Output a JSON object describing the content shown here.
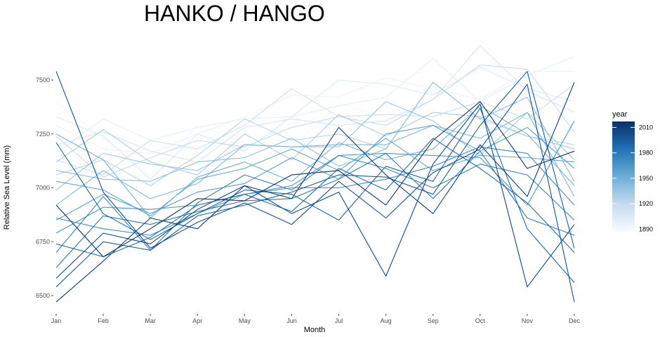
{
  "chart_data": {
    "type": "line",
    "title": "HANKO / HANGO",
    "xlabel": "Month",
    "ylabel": "Relative Sea Level (mm)",
    "categories": [
      "Jan",
      "Feb",
      "Mar",
      "Apr",
      "May",
      "Jun",
      "Jul",
      "Aug",
      "Sep",
      "Oct",
      "Nov",
      "Dec"
    ],
    "ylim": [
      6470,
      7660
    ],
    "yticks": [
      6500,
      6750,
      7000,
      7250,
      7500
    ],
    "grid": false,
    "legend": {
      "title": "year",
      "position": "right",
      "range": [
        1887,
        2017
      ],
      "ticks": [
        1890,
        1920,
        1950,
        1980,
        2010
      ],
      "colors": [
        "#f7fbff",
        "#c6dbef",
        "#6baed6",
        "#2171b5",
        "#08306b"
      ]
    },
    "series": [
      {
        "year": 1890,
        "values": [
          7400,
          7230,
          7060,
          7290,
          7210,
          7180,
          7390,
          7330,
          7260,
          7290,
          7440,
          7360
        ]
      },
      {
        "year": 1895,
        "values": [
          7290,
          7180,
          7160,
          7250,
          7330,
          7430,
          7420,
          7510,
          7460,
          7410,
          7540,
          7540
        ]
      },
      {
        "year": 1900,
        "values": [
          7160,
          7320,
          7220,
          7280,
          7320,
          7330,
          7380,
          7420,
          7600,
          7400,
          7520,
          7610
        ]
      },
      {
        "year": 1905,
        "values": [
          7330,
          7240,
          7040,
          7250,
          7170,
          7330,
          7500,
          7480,
          7430,
          7560,
          7460,
          7400
        ]
      },
      {
        "year": 1910,
        "values": [
          7200,
          7260,
          7170,
          7120,
          7280,
          7320,
          7290,
          7310,
          7410,
          7660,
          7450,
          7350
        ]
      },
      {
        "year": 1915,
        "values": [
          7130,
          7060,
          7220,
          7180,
          7290,
          7460,
          7330,
          7340,
          7330,
          7400,
          7320,
          7480
        ]
      },
      {
        "year": 1920,
        "values": [
          7240,
          7050,
          7140,
          7220,
          7190,
          7280,
          7330,
          7290,
          7410,
          7570,
          7550,
          7260
        ]
      },
      {
        "year": 1925,
        "values": [
          7060,
          7130,
          7010,
          7150,
          7320,
          7220,
          7250,
          7180,
          7490,
          7320,
          7240,
          7200
        ]
      },
      {
        "year": 1930,
        "values": [
          7120,
          7270,
          7120,
          7060,
          7250,
          7130,
          7340,
          7240,
          7350,
          7330,
          7240,
          7180
        ]
      },
      {
        "year": 1935,
        "values": [
          6990,
          7160,
          7110,
          7080,
          7200,
          7190,
          7190,
          7400,
          7310,
          7150,
          7350,
          7130
        ]
      },
      {
        "year": 1940,
        "values": [
          7080,
          7040,
          7030,
          7120,
          7140,
          7230,
          7100,
          7180,
          7490,
          7320,
          7420,
          7030
        ]
      },
      {
        "year": 1945,
        "values": [
          6920,
          7080,
          6950,
          7020,
          7200,
          7190,
          7200,
          7200,
          7290,
          7230,
          7350,
          6960
        ]
      },
      {
        "year": 1950,
        "values": [
          7250,
          7130,
          6860,
          7050,
          7120,
          7030,
          7210,
          7130,
          7180,
          7380,
          7250,
          7010
        ]
      },
      {
        "year": 1955,
        "values": [
          7030,
          6990,
          6870,
          7040,
          7090,
          7180,
          7080,
          7230,
          7080,
          7150,
          7140,
          7120
        ]
      },
      {
        "year": 1960,
        "values": [
          6850,
          6970,
          6880,
          6980,
          7020,
          7140,
          7040,
          7250,
          7290,
          7170,
          7280,
          7090
        ]
      },
      {
        "year": 1965,
        "values": [
          6790,
          6910,
          6900,
          6920,
          6970,
          7010,
          7150,
          7160,
          7150,
          7140,
          6920,
          7310
        ]
      },
      {
        "year": 1970,
        "values": [
          6860,
          6810,
          6780,
          6880,
          6970,
          7000,
          7000,
          7040,
          7100,
          7190,
          7160,
          6920
        ]
      },
      {
        "year": 1975,
        "values": [
          6700,
          6960,
          6710,
          6930,
          7060,
          6990,
          7150,
          7090,
          7000,
          7110,
          7060,
          6850
        ]
      },
      {
        "year": 1980,
        "values": [
          6630,
          6870,
          6830,
          6890,
          6940,
          6950,
          7040,
          7160,
          6950,
          7170,
          6860,
          6780
        ]
      },
      {
        "year": 1985,
        "values": [
          6740,
          6680,
          6770,
          6920,
          6970,
          6890,
          7090,
          6990,
          7230,
          7090,
          6930,
          6700
        ]
      },
      {
        "year": 1990,
        "values": [
          7210,
          6880,
          6760,
          6880,
          6990,
          6970,
          6850,
          7100,
          7030,
          7370,
          6810,
          6560
        ]
      },
      {
        "year": 1995,
        "values": [
          6540,
          6750,
          6710,
          6870,
          6920,
          6980,
          7060,
          7050,
          6970,
          7290,
          7540,
          6720
        ]
      },
      {
        "year": 2000,
        "values": [
          7540,
          6980,
          6720,
          6840,
          6930,
          6830,
          7030,
          6860,
          7070,
          7180,
          7480,
          6470
        ]
      },
      {
        "year": 2005,
        "values": [
          6580,
          6790,
          6740,
          6900,
          7010,
          6880,
          6980,
          6590,
          7110,
          7390,
          6540,
          6830
        ]
      },
      {
        "year": 2010,
        "values": [
          6470,
          6660,
          6860,
          6810,
          7010,
          6950,
          7280,
          7060,
          6880,
          7200,
          6960,
          7490
        ]
      },
      {
        "year": 2015,
        "values": [
          6920,
          6680,
          6810,
          6950,
          6940,
          7060,
          7080,
          6920,
          7220,
          7400,
          7090,
          7170
        ]
      }
    ]
  }
}
